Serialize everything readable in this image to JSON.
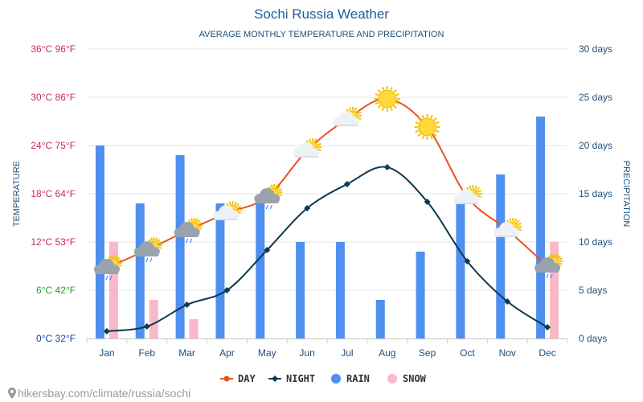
{
  "header": {
    "title": "Sochi Russia Weather",
    "subtitle": "AVERAGE MONTHLY TEMPERATURE AND PRECIPITATION"
  },
  "axes": {
    "left_title": "TEMPERATURE",
    "right_title": "PRECIPITATION",
    "left_ticks": [
      {
        "label": "0°C 32°F",
        "color": "#1a3fb3"
      },
      {
        "label": "6°C 42°F",
        "color": "#2aa12a"
      },
      {
        "label": "12°C 53°F",
        "color": "#c92b58"
      },
      {
        "label": "18°C 64°F",
        "color": "#c92b58"
      },
      {
        "label": "24°C 75°F",
        "color": "#c92b58"
      },
      {
        "label": "30°C 86°F",
        "color": "#c92b58"
      },
      {
        "label": "36°C 96°F",
        "color": "#c92b58"
      }
    ],
    "right_ticks": [
      "0 days",
      "5 days",
      "10 days",
      "15 days",
      "20 days",
      "25 days",
      "30 days"
    ]
  },
  "legend": {
    "day": "DAY",
    "night": "NIGHT",
    "rain": "RAIN",
    "snow": "SNOW"
  },
  "source": "hikersbay.com/climate/russia/sochi",
  "colors": {
    "day": "#e8541d",
    "night": "#0d3a4f",
    "rain": "#4f8ff0",
    "snow": "#f9b8c7",
    "grid": "#e6e6e6",
    "axis_label": "#1f4f7a"
  },
  "chart_data": {
    "type": "bar",
    "categories": [
      "Jan",
      "Feb",
      "Mar",
      "Apr",
      "May",
      "Jun",
      "Jul",
      "Aug",
      "Sep",
      "Oct",
      "Nov",
      "Dec"
    ],
    "series": [
      {
        "name": "DAY",
        "kind": "line",
        "axis": "temperature_c",
        "values": [
          8.8,
          11,
          13.4,
          15.6,
          17.6,
          23.4,
          27.3,
          29.8,
          26.3,
          17.6,
          13.5,
          9
        ]
      },
      {
        "name": "NIGHT",
        "kind": "line",
        "axis": "temperature_c",
        "values": [
          0.9,
          1.5,
          4.2,
          6,
          11,
          16.2,
          19.2,
          21.3,
          17,
          9.6,
          4.6,
          1.4
        ]
      },
      {
        "name": "RAIN",
        "kind": "bar",
        "axis": "days",
        "values": [
          20,
          14,
          19,
          14,
          14,
          10,
          10,
          4,
          9,
          14,
          17,
          23
        ]
      },
      {
        "name": "SNOW",
        "kind": "bar",
        "axis": "days",
        "values": [
          10,
          4,
          2,
          0,
          0,
          0,
          0,
          0,
          0,
          0,
          0,
          10
        ]
      }
    ],
    "weather_icons": [
      "cloud-rain",
      "cloud-rain",
      "cloud-rain",
      "sun-cloud",
      "cloud-rain",
      "sun-cloud",
      "sun-cloud",
      "sun",
      "sun",
      "sun-cloud",
      "sun-cloud",
      "cloud-rain"
    ],
    "title": "Sochi Russia Weather",
    "subtitle": "AVERAGE MONTHLY TEMPERATURE AND PRECIPITATION",
    "ylabel": "TEMPERATURE",
    "y2label": "PRECIPITATION",
    "ylim": [
      0,
      36
    ],
    "y2lim": [
      0,
      30
    ],
    "grid": true,
    "legend_position": "bottom"
  }
}
